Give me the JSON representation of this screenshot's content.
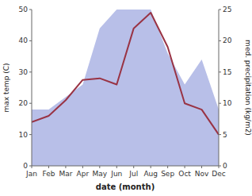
{
  "chart_data": {
    "type": "line",
    "xlabel": "date (month)",
    "ylabel": "max temp (C)",
    "y2label": "med. precipitation (kg/m2)",
    "categories": [
      "Jan",
      "Feb",
      "Mar",
      "Apr",
      "May",
      "Jun",
      "Jul",
      "Aug",
      "Sep",
      "Oct",
      "Nov",
      "Dec"
    ],
    "series": [
      {
        "type": "area",
        "color": "#b8bfe8",
        "axis": "y2",
        "values": [
          9.0,
          9.0,
          11.0,
          13.0,
          22.0,
          25.0,
          25.0,
          25.0,
          18.0,
          13.0,
          17.0,
          9.0
        ]
      },
      {
        "type": "line",
        "color": "#993344",
        "values": [
          14.0,
          16.0,
          21.0,
          27.5,
          28.0,
          26.0,
          44.0,
          49.0,
          38.0,
          20.0,
          18.0,
          10.0
        ]
      }
    ],
    "ylim": [
      0,
      50
    ],
    "yticks": [
      0,
      10,
      20,
      30,
      40,
      50
    ],
    "y2lim": [
      0,
      25
    ],
    "y2ticks": [
      0,
      5,
      10,
      15,
      20,
      25
    ],
    "grid": false
  }
}
